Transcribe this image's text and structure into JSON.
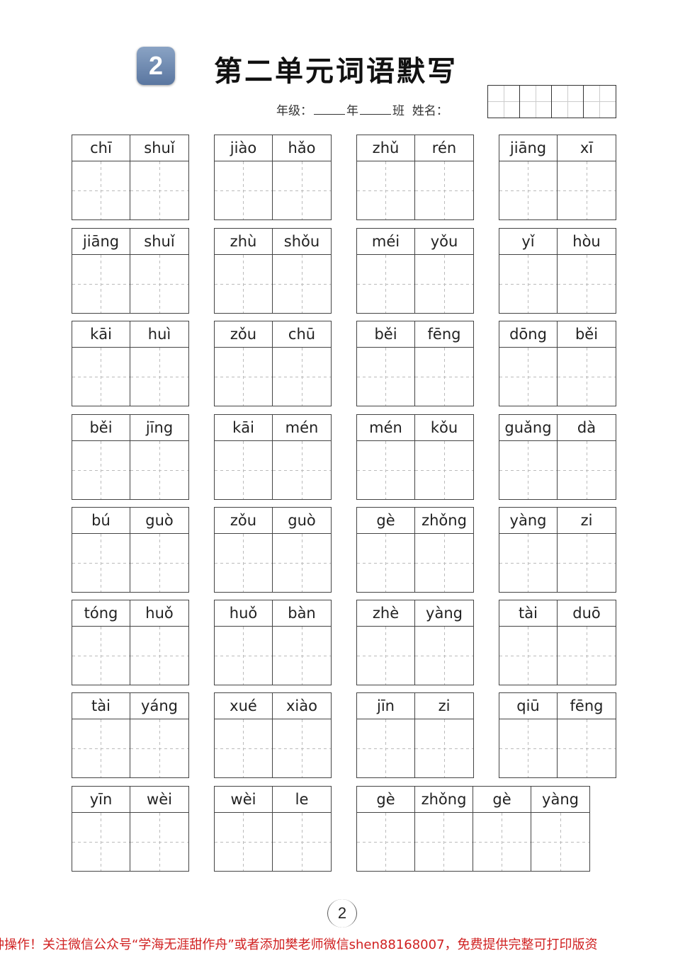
{
  "header": {
    "unit_number": "2",
    "title": "第二单元词语默写",
    "grade_label": "年级：",
    "year_label": "年",
    "class_label": "班",
    "name_label": "姓名："
  },
  "words": [
    [
      "chī",
      "shuǐ"
    ],
    [
      "jiào",
      "hǎo"
    ],
    [
      "zhǔ",
      "rén"
    ],
    [
      "jiāng",
      "xī"
    ],
    [
      "jiāng",
      "shuǐ"
    ],
    [
      "zhù",
      "shǒu"
    ],
    [
      "méi",
      "yǒu"
    ],
    [
      "yǐ",
      "hòu"
    ],
    [
      "kāi",
      "huì"
    ],
    [
      "zǒu",
      "chū"
    ],
    [
      "běi",
      "fēng"
    ],
    [
      "dōng",
      "běi"
    ],
    [
      "běi",
      "jīng"
    ],
    [
      "kāi",
      "mén"
    ],
    [
      "mén",
      "kǒu"
    ],
    [
      "guǎng",
      "dà"
    ],
    [
      "bú",
      "guò"
    ],
    [
      "zǒu",
      "guò"
    ],
    [
      "gè",
      "zhǒng"
    ],
    [
      "yàng",
      "zi"
    ],
    [
      "tóng",
      "huǒ"
    ],
    [
      "huǒ",
      "bàn"
    ],
    [
      "zhè",
      "yàng"
    ],
    [
      "tài",
      "duō"
    ],
    [
      "tài",
      "yáng"
    ],
    [
      "xué",
      "xiào"
    ],
    [
      "jīn",
      "zi"
    ],
    [
      "qiū",
      "fēng"
    ],
    [
      "yīn",
      "wèi"
    ],
    [
      "wèi",
      "le"
    ],
    [
      "gè",
      "zhǒng",
      "gè",
      "yàng"
    ]
  ],
  "page_number": "2",
  "footer_text": "钟操作！关注微信公众号“学海无涯甜作舟”或者添加樊老师微信shen88168007，免费提供完整可打印版资"
}
